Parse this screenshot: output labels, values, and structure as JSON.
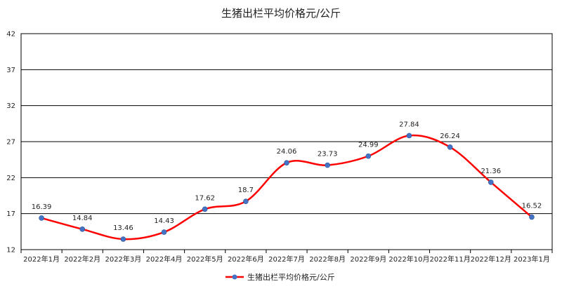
{
  "chart_data": {
    "type": "line",
    "title": "生猪出栏平均价格元/公斤",
    "categories": [
      "2022年1月",
      "2022年2月",
      "2022年3月",
      "2022年4月",
      "2022年5月",
      "2022年6月",
      "2022年7月",
      "2022年8月",
      "2022年9月",
      "2022年10月",
      "2022年11月",
      "2022年12月",
      "2023年1月"
    ],
    "series": [
      {
        "name": "生猪出栏平均价格元/公斤",
        "values": [
          16.39,
          14.84,
          13.46,
          14.43,
          17.62,
          18.7,
          24.06,
          23.73,
          24.99,
          27.84,
          26.24,
          21.36,
          16.52
        ],
        "labels": [
          "16.39",
          "14.84",
          "13.46",
          "14.43",
          "17.62",
          "18.7",
          "24.06",
          "23.73",
          "24.99",
          "27.84",
          "26.24",
          "21.36",
          "16.52"
        ],
        "line_color": "#ff0000",
        "marker_color": "#4472c4"
      }
    ],
    "ylim": [
      12,
      42
    ],
    "yticks": [
      "12",
      "17",
      "22",
      "27",
      "32",
      "37",
      "42"
    ],
    "grid": true,
    "legend_position": "bottom",
    "smooth": true
  }
}
